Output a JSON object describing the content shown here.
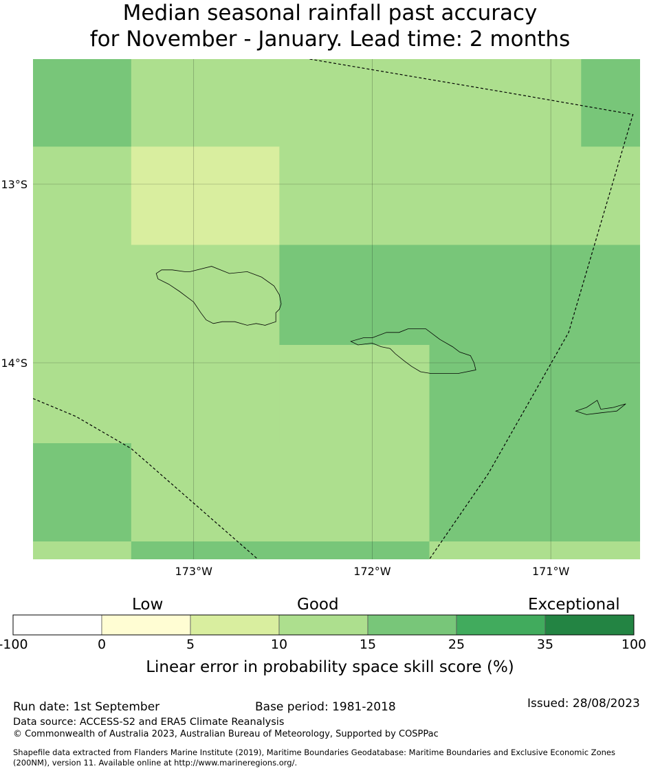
{
  "title": {
    "line1": "Median seasonal rainfall past accuracy",
    "line2": "for November - January. Lead time: 2 months"
  },
  "map": {
    "lat_labels": [
      "13°S",
      "14°S"
    ],
    "lon_labels": [
      "173°W",
      "172°W",
      "171°W"
    ],
    "grid": true,
    "graticule_lat": [
      -13,
      -14
    ],
    "graticule_lon": [
      -173,
      -172,
      -171
    ],
    "extent": {
      "lon": [
        -173.9,
        -170.5
      ],
      "lat": [
        -15.1,
        -12.3
      ]
    },
    "cells": [
      {
        "lon": [
          -173.9,
          -173.35
        ],
        "lat": [
          -12.79,
          -12.3
        ],
        "score": 20
      },
      {
        "lon": [
          -173.35,
          -170.83
        ],
        "lat": [
          -12.79,
          -12.3
        ],
        "score": 12
      },
      {
        "lon": [
          -170.83,
          -170.5
        ],
        "lat": [
          -12.79,
          -12.3
        ],
        "score": 20
      },
      {
        "lon": [
          -173.9,
          -173.35
        ],
        "lat": [
          -13.34,
          -12.79
        ],
        "score": 12
      },
      {
        "lon": [
          -173.35,
          -172.52
        ],
        "lat": [
          -13.34,
          -12.79
        ],
        "score": 8
      },
      {
        "lon": [
          -172.52,
          -170.5
        ],
        "lat": [
          -13.34,
          -12.79
        ],
        "score": 12
      },
      {
        "lon": [
          -173.9,
          -172.52
        ],
        "lat": [
          -13.9,
          -13.34
        ],
        "score": 12
      },
      {
        "lon": [
          -172.52,
          -170.5
        ],
        "lat": [
          -13.9,
          -13.34
        ],
        "score": 20
      },
      {
        "lon": [
          -173.9,
          -172.52
        ],
        "lat": [
          -14.45,
          -13.9
        ],
        "score": 12
      },
      {
        "lon": [
          -172.52,
          -171.68
        ],
        "lat": [
          -14.45,
          -13.9
        ],
        "score": 12
      },
      {
        "lon": [
          -171.68,
          -170.5
        ],
        "lat": [
          -14.45,
          -13.9
        ],
        "score": 20
      },
      {
        "lon": [
          -173.9,
          -173.35
        ],
        "lat": [
          -15.0,
          -14.45
        ],
        "score": 20
      },
      {
        "lon": [
          -173.35,
          -171.68
        ],
        "lat": [
          -15.0,
          -14.45
        ],
        "score": 12
      },
      {
        "lon": [
          -171.68,
          -170.5
        ],
        "lat": [
          -15.0,
          -14.45
        ],
        "score": 20
      },
      {
        "lon": [
          -173.9,
          -173.35
        ],
        "lat": [
          -15.1,
          -15.0
        ],
        "score": 12
      },
      {
        "lon": [
          -173.35,
          -171.68
        ],
        "lat": [
          -15.1,
          -15.0
        ],
        "score": 20
      },
      {
        "lon": [
          -171.68,
          -170.5
        ],
        "lat": [
          -15.1,
          -15.0
        ],
        "score": 12
      }
    ],
    "eez_boundaries": [
      [
        [
          -172.35,
          -12.3
        ],
        [
          -171.23,
          -12.49
        ],
        [
          -170.54,
          -12.61
        ],
        [
          -170.9,
          -13.83
        ],
        [
          -171.35,
          -14.62
        ],
        [
          -171.68,
          -15.1
        ]
      ],
      [
        [
          -173.9,
          -14.2
        ],
        [
          -173.66,
          -14.3
        ],
        [
          -173.35,
          -14.48
        ],
        [
          -172.64,
          -15.1
        ]
      ]
    ],
    "coastlines": [
      [
        [
          -172.8,
          -13.5
        ],
        [
          -172.7,
          -13.49
        ],
        [
          -172.62,
          -13.52
        ],
        [
          -172.55,
          -13.57
        ],
        [
          -172.52,
          -13.62
        ],
        [
          -172.51,
          -13.67
        ],
        [
          -172.52,
          -13.7
        ],
        [
          -172.54,
          -13.72
        ],
        [
          -172.54,
          -13.77
        ],
        [
          -172.57,
          -13.78
        ],
        [
          -172.6,
          -13.79
        ],
        [
          -172.65,
          -13.78
        ],
        [
          -172.7,
          -13.79
        ],
        [
          -172.77,
          -13.77
        ],
        [
          -172.84,
          -13.77
        ],
        [
          -172.89,
          -13.78
        ],
        [
          -172.93,
          -13.76
        ],
        [
          -172.96,
          -13.72
        ],
        [
          -173.0,
          -13.66
        ],
        [
          -173.08,
          -13.6
        ],
        [
          -173.14,
          -13.56
        ],
        [
          -173.2,
          -13.53
        ],
        [
          -173.21,
          -13.5
        ],
        [
          -173.18,
          -13.48
        ],
        [
          -173.12,
          -13.48
        ],
        [
          -173.05,
          -13.49
        ],
        [
          -173.02,
          -13.49
        ],
        [
          -172.9,
          -13.46
        ],
        [
          -172.8,
          -13.5
        ]
      ],
      [
        [
          -171.62,
          -13.87
        ],
        [
          -171.55,
          -13.91
        ],
        [
          -171.51,
          -13.94
        ],
        [
          -171.45,
          -13.96
        ],
        [
          -171.43,
          -14.0
        ],
        [
          -171.42,
          -14.04
        ],
        [
          -171.52,
          -14.06
        ],
        [
          -171.6,
          -14.06
        ],
        [
          -171.67,
          -14.06
        ],
        [
          -171.73,
          -14.05
        ],
        [
          -171.78,
          -14.02
        ],
        [
          -171.82,
          -13.99
        ],
        [
          -171.87,
          -13.95
        ],
        [
          -171.9,
          -13.92
        ],
        [
          -171.95,
          -13.91
        ],
        [
          -172.0,
          -13.89
        ],
        [
          -172.08,
          -13.9
        ],
        [
          -172.12,
          -13.88
        ],
        [
          -172.05,
          -13.86
        ],
        [
          -172.0,
          -13.86
        ],
        [
          -171.92,
          -13.83
        ],
        [
          -171.85,
          -13.83
        ],
        [
          -171.8,
          -13.81
        ],
        [
          -171.7,
          -13.81
        ],
        [
          -171.62,
          -13.87
        ]
      ],
      [
        [
          -170.8,
          -14.29
        ],
        [
          -170.72,
          -14.28
        ],
        [
          -170.63,
          -14.27
        ],
        [
          -170.58,
          -14.23
        ],
        [
          -170.65,
          -14.25
        ],
        [
          -170.72,
          -14.26
        ],
        [
          -170.74,
          -14.21
        ],
        [
          -170.8,
          -14.25
        ],
        [
          -170.86,
          -14.27
        ],
        [
          -170.8,
          -14.29
        ]
      ]
    ]
  },
  "colorbar": {
    "categories": [
      "Low",
      "Good",
      "Exceptional"
    ],
    "bounds": [
      -100,
      0,
      5,
      10,
      15,
      25,
      35,
      100
    ],
    "tick_labels": [
      "-100",
      "0",
      "5",
      "10",
      "15",
      "25",
      "35",
      "100"
    ],
    "colors": [
      "#ffffff",
      "#fffdd3",
      "#d9ee9f",
      "#addf8e",
      "#78c679",
      "#41ab5d",
      "#238443"
    ],
    "label": "Linear error in probability space skill score (%)"
  },
  "footer": {
    "run_date": "Run date: 1st September",
    "base_period": "Base period: 1981-2018",
    "issued": "Issued: 28/08/2023",
    "data_source": "Data source: ACCESS-S2 and ERA5 Climate Reanalysis",
    "copyright": "© Commonwealth of Australia 2023, Australian Bureau of Meteorology, Supported by COSPPac",
    "shapefile_line1": "Shapefile data extracted from Flanders Marine Institute (2019), Maritime Boundaries Geodatabase: Maritime Boundaries and Exclusive Economic Zones",
    "shapefile_line2": "(200NM), version 11. Available online at http://www.marineregions.org/."
  }
}
